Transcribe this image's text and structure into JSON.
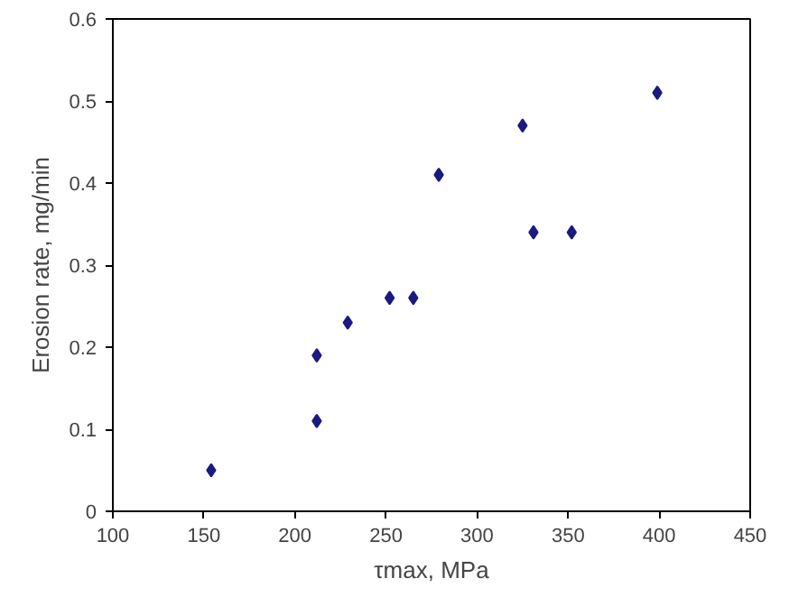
{
  "chart_data": {
    "type": "scatter",
    "xlabel": "τmax, MPa",
    "ylabel": "Erosion rate, mg/min",
    "x": [
      154,
      212,
      212,
      229,
      252,
      265,
      279,
      325,
      331,
      352,
      399
    ],
    "values": [
      0.05,
      0.11,
      0.19,
      0.23,
      0.26,
      0.26,
      0.41,
      0.47,
      0.34,
      0.34,
      0.51
    ],
    "color": "#1a1a80",
    "marker": "diamond",
    "grid": false,
    "xlim": [
      100,
      450
    ],
    "xticks": [
      100,
      150,
      200,
      250,
      300,
      350,
      400,
      450
    ],
    "ylim": [
      0,
      0.6
    ],
    "yticks": [
      {
        "value": 0,
        "label": "0"
      },
      0.1,
      0.2,
      0.3,
      0.4,
      0.5,
      0.6
    ]
  }
}
